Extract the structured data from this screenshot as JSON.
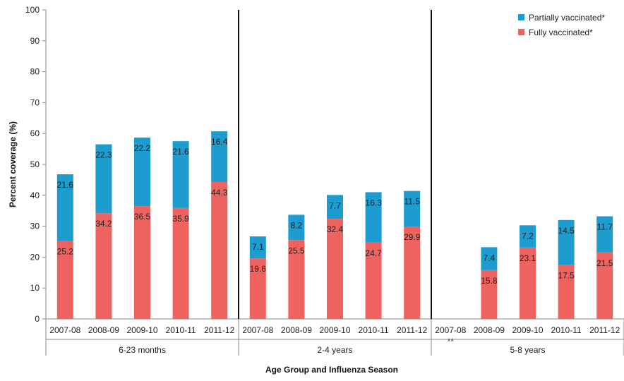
{
  "chart_data": {
    "type": "bar",
    "stacked": true,
    "xlabel": "Age Group and Influenza Season",
    "ylabel": "Percent coverage (%)",
    "ylim": [
      0,
      100
    ],
    "yticks": [
      0,
      10,
      20,
      30,
      40,
      50,
      60,
      70,
      80,
      90,
      100
    ],
    "grid": false,
    "legend_position": "top-right",
    "colors": {
      "fully": "#ee6360",
      "partially": "#1d9ccf",
      "axis": "#8a8a8a",
      "divider": "#111111"
    },
    "series": [
      {
        "name": "Partially vaccinated*",
        "key": "partially"
      },
      {
        "name": "Fully vaccinated*",
        "key": "fully"
      }
    ],
    "groups": [
      {
        "label": "6-23 months",
        "categories": [
          "2007-08",
          "2008-09",
          "2009-10",
          "2010-11",
          "2011-12"
        ],
        "fully": [
          25.2,
          34.2,
          36.5,
          35.9,
          44.3
        ],
        "partially": [
          21.6,
          22.3,
          22.2,
          21.6,
          16.4
        ]
      },
      {
        "label": "2-4 years",
        "categories": [
          "2007-08",
          "2008-09",
          "2009-10",
          "2010-11",
          "2011-12"
        ],
        "fully": [
          19.6,
          25.5,
          32.4,
          24.7,
          29.9
        ],
        "partially": [
          7.1,
          8.2,
          7.7,
          16.3,
          11.5
        ]
      },
      {
        "label": "5-8 years",
        "categories": [
          "2007-08",
          "2008-09",
          "2009-10",
          "2010-11",
          "2011-12"
        ],
        "fully": [
          null,
          15.8,
          23.1,
          17.5,
          21.5
        ],
        "partially": [
          null,
          7.4,
          7.2,
          14.5,
          11.7
        ],
        "notes": [
          "**",
          "",
          "",
          "",
          ""
        ]
      }
    ]
  }
}
